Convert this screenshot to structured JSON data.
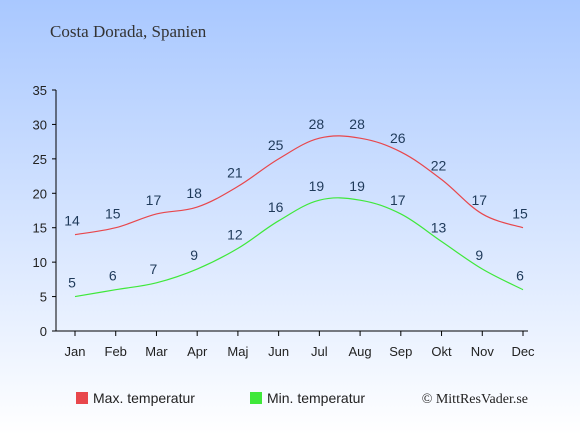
{
  "chart_data": {
    "type": "line",
    "title": "Costa Dorada, Spanien",
    "categories": [
      "Jan",
      "Feb",
      "Mar",
      "Apr",
      "Maj",
      "Jun",
      "Jul",
      "Aug",
      "Sep",
      "Okt",
      "Nov",
      "Dec"
    ],
    "y_ticks": [
      0,
      5,
      10,
      15,
      20,
      25,
      30,
      35
    ],
    "ylim": [
      0,
      35
    ],
    "grid": false,
    "legend": "bottom-left",
    "series": [
      {
        "name": "Max. temperatur",
        "color": "#e8474c",
        "values": [
          14,
          15,
          17,
          18,
          21,
          25,
          28,
          28,
          26,
          22,
          17,
          15
        ]
      },
      {
        "name": "Min. temperatur",
        "color": "#3fe83a",
        "values": [
          5,
          6,
          7,
          9,
          12,
          16,
          19,
          19,
          17,
          13,
          9,
          6
        ]
      }
    ]
  },
  "credit": "© MittResVader.se",
  "colors": {
    "background_top": "#a9c8ff",
    "background_bottom": "#ffffff",
    "axis": "#000000",
    "text": "#1f3a5a"
  }
}
